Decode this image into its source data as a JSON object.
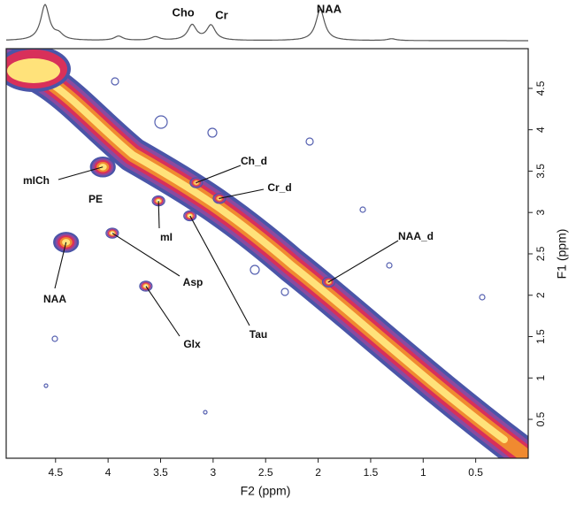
{
  "chart_data": {
    "type": "contour",
    "xlabel": "F2 (ppm)",
    "ylabel": "F1 (ppm)",
    "xlim": [
      4.97,
      0
    ],
    "ylim": [
      0.03,
      4.98
    ],
    "xticks": [
      4.5,
      4.0,
      3.5,
      3.0,
      2.5,
      2.0,
      1.5,
      1.0,
      0.5
    ],
    "yticks": [
      0.5,
      1.0,
      1.5,
      2.0,
      2.5,
      3.0,
      3.5,
      4.0,
      4.5
    ],
    "projection": {
      "peaks": [
        {
          "x": 4.6,
          "height": 1.0
        },
        {
          "x": 4.47,
          "height": 0.15
        },
        {
          "x": 3.9,
          "height": 0.12
        },
        {
          "x": 3.55,
          "height": 0.1
        },
        {
          "x": 3.2,
          "height": 0.43,
          "label": "Cho"
        },
        {
          "x": 3.02,
          "height": 0.42,
          "label": "Cr"
        },
        {
          "x": 1.98,
          "height": 0.88,
          "label": "NAA"
        },
        {
          "x": 1.3,
          "height": 0.05
        }
      ]
    },
    "annotations": [
      {
        "text": "mICh",
        "x": 4.05,
        "y": 3.55
      },
      {
        "text": "PE"
      },
      {
        "text": "mI",
        "x": 3.52,
        "y": 3.14
      },
      {
        "text": "NAA",
        "x": 4.4,
        "y": 2.64
      },
      {
        "text": "Asp",
        "x": 3.96,
        "y": 2.75
      },
      {
        "text": "Glx",
        "x": 3.64,
        "y": 2.11
      },
      {
        "text": "Tau",
        "x": 3.22,
        "y": 2.96
      },
      {
        "text": "Ch_d",
        "x": 3.16,
        "y": 3.36
      },
      {
        "text": "Cr_d",
        "x": 2.94,
        "y": 3.17
      },
      {
        "text": "NAA_d",
        "x": 1.9,
        "y": 2.16
      }
    ]
  }
}
